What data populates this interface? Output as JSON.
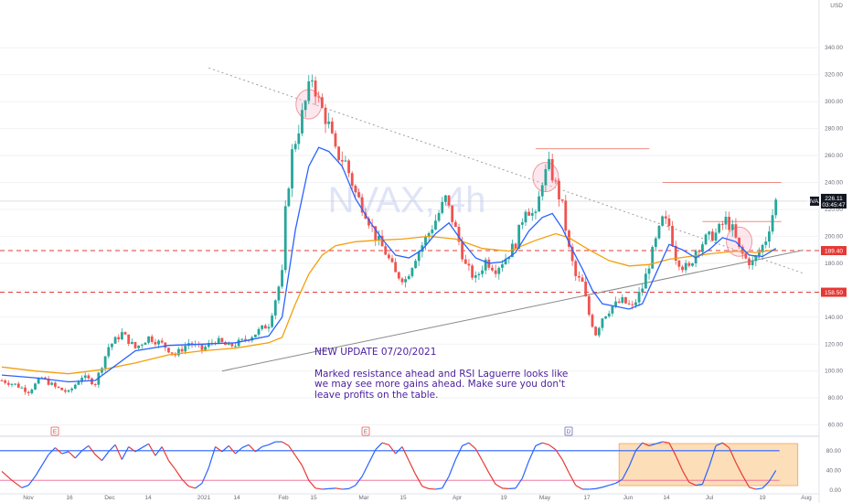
{
  "chart_data": {
    "type": "candlestick",
    "symbol_watermark": "NVAX, 4h",
    "currency": "USD",
    "ylim": [
      55,
      370
    ],
    "price_ticks": [
      60,
      80,
      100,
      120,
      140,
      160,
      180,
      200,
      220,
      240,
      260,
      280,
      300,
      320,
      340
    ],
    "x_labels": [
      "Nov",
      "16",
      "Dec",
      "14",
      "2021",
      "14",
      "Feb",
      "15",
      "Mar",
      "15",
      "Apr",
      "19",
      "May",
      "17",
      "Jun",
      "14",
      "Jul",
      "19",
      "Aug"
    ],
    "last_price": {
      "label": "NVAX",
      "value": "226.11",
      "countdown": "03:45:47",
      "color": "#131722"
    },
    "levels": [
      {
        "value": 189.4,
        "label": "189.40",
        "color": "#e53935"
      },
      {
        "value": 158.5,
        "label": "158.50",
        "color": "#e53935"
      }
    ],
    "resistance_lines": [
      265,
      240,
      211
    ],
    "ohlc_path": [
      [
        0,
        93
      ],
      [
        4,
        90
      ],
      [
        8,
        85
      ],
      [
        12,
        95
      ],
      [
        16,
        88
      ],
      [
        20,
        84
      ],
      [
        24,
        96
      ],
      [
        28,
        91
      ],
      [
        32,
        118
      ],
      [
        36,
        128
      ],
      [
        40,
        117
      ],
      [
        44,
        125
      ],
      [
        48,
        120
      ],
      [
        52,
        112
      ],
      [
        56,
        121
      ],
      [
        60,
        116
      ],
      [
        64,
        123
      ],
      [
        68,
        118
      ],
      [
        72,
        122
      ],
      [
        76,
        128
      ],
      [
        80,
        135
      ],
      [
        84,
        172
      ],
      [
        85,
        218
      ],
      [
        87,
        262
      ],
      [
        90,
        290
      ],
      [
        93,
        318
      ],
      [
        95,
        300
      ],
      [
        98,
        282
      ],
      [
        100,
        262
      ],
      [
        103,
        255
      ],
      [
        106,
        232
      ],
      [
        109,
        218
      ],
      [
        112,
        200
      ],
      [
        115,
        188
      ],
      [
        118,
        172
      ],
      [
        121,
        168
      ],
      [
        124,
        185
      ],
      [
        127,
        198
      ],
      [
        130,
        212
      ],
      [
        133,
        228
      ],
      [
        136,
        205
      ],
      [
        139,
        178
      ],
      [
        142,
        168
      ],
      [
        145,
        182
      ],
      [
        148,
        176
      ],
      [
        151,
        184
      ],
      [
        154,
        195
      ],
      [
        157,
        222
      ],
      [
        160,
        214
      ],
      [
        162,
        242
      ],
      [
        164,
        252
      ],
      [
        166,
        238
      ],
      [
        168,
        222
      ],
      [
        170,
        190
      ],
      [
        172,
        170
      ],
      [
        174,
        165
      ],
      [
        176,
        142
      ],
      [
        178,
        128
      ],
      [
        180,
        140
      ],
      [
        183,
        148
      ],
      [
        186,
        152
      ],
      [
        189,
        147
      ],
      [
        192,
        162
      ],
      [
        195,
        188
      ],
      [
        198,
        212
      ],
      [
        200,
        208
      ],
      [
        202,
        185
      ],
      [
        204,
        178
      ],
      [
        206,
        176
      ],
      [
        208,
        190
      ],
      [
        211,
        198
      ],
      [
        214,
        202
      ],
      [
        217,
        212
      ],
      [
        219,
        205
      ],
      [
        221,
        190
      ],
      [
        223,
        183
      ],
      [
        225,
        180
      ],
      [
        227,
        188
      ],
      [
        229,
        198
      ],
      [
        232,
        226
      ]
    ],
    "ema_fast": [
      [
        0,
        97
      ],
      [
        10,
        95
      ],
      [
        20,
        92
      ],
      [
        28,
        93
      ],
      [
        34,
        104
      ],
      [
        40,
        115
      ],
      [
        50,
        119
      ],
      [
        60,
        120
      ],
      [
        70,
        121
      ],
      [
        80,
        126
      ],
      [
        84,
        140
      ],
      [
        88,
        205
      ],
      [
        92,
        252
      ],
      [
        95,
        266
      ],
      [
        98,
        263
      ],
      [
        102,
        252
      ],
      [
        106,
        228
      ],
      [
        110,
        212
      ],
      [
        114,
        198
      ],
      [
        118,
        186
      ],
      [
        122,
        184
      ],
      [
        126,
        190
      ],
      [
        130,
        202
      ],
      [
        134,
        210
      ],
      [
        138,
        196
      ],
      [
        142,
        184
      ],
      [
        146,
        180
      ],
      [
        150,
        181
      ],
      [
        154,
        188
      ],
      [
        158,
        204
      ],
      [
        162,
        214
      ],
      [
        165,
        217
      ],
      [
        168,
        206
      ],
      [
        171,
        190
      ],
      [
        174,
        176
      ],
      [
        177,
        160
      ],
      [
        180,
        150
      ],
      [
        184,
        148
      ],
      [
        188,
        146
      ],
      [
        192,
        150
      ],
      [
        196,
        172
      ],
      [
        200,
        194
      ],
      [
        204,
        190
      ],
      [
        208,
        184
      ],
      [
        212,
        190
      ],
      [
        216,
        199
      ],
      [
        220,
        196
      ],
      [
        224,
        186
      ],
      [
        228,
        185
      ],
      [
        232,
        191
      ]
    ],
    "ema_slow": [
      [
        0,
        103
      ],
      [
        10,
        100
      ],
      [
        20,
        98
      ],
      [
        30,
        101
      ],
      [
        40,
        106
      ],
      [
        50,
        112
      ],
      [
        60,
        115
      ],
      [
        70,
        117
      ],
      [
        80,
        121
      ],
      [
        84,
        125
      ],
      [
        88,
        150
      ],
      [
        92,
        172
      ],
      [
        96,
        186
      ],
      [
        100,
        193
      ],
      [
        106,
        196
      ],
      [
        112,
        197
      ],
      [
        120,
        198
      ],
      [
        128,
        200
      ],
      [
        136,
        198
      ],
      [
        144,
        191
      ],
      [
        152,
        189
      ],
      [
        160,
        197
      ],
      [
        166,
        202
      ],
      [
        170,
        199
      ],
      [
        176,
        190
      ],
      [
        182,
        182
      ],
      [
        188,
        178
      ],
      [
        194,
        179
      ],
      [
        200,
        183
      ],
      [
        206,
        185
      ],
      [
        212,
        187
      ],
      [
        220,
        189
      ],
      [
        226,
        188
      ],
      [
        232,
        190
      ]
    ],
    "trendlines": [
      {
        "from": [
          62,
          325
        ],
        "to": [
          232,
          178
        ],
        "style": "dotted"
      },
      {
        "from": [
          66,
          100
        ],
        "to": [
          232,
          185
        ],
        "style": "solid"
      }
    ],
    "rsi": {
      "name": "RSI Laguerre",
      "ylim": [
        0,
        100
      ],
      "ticks": [
        "80.00",
        "40.00",
        "0.00"
      ],
      "tick_values": [
        80,
        40,
        0
      ],
      "upper_band": 80,
      "lower_band": 20,
      "values": [
        [
          0,
          38
        ],
        [
          3,
          20
        ],
        [
          6,
          5
        ],
        [
          8,
          10
        ],
        [
          10,
          28
        ],
        [
          12,
          50
        ],
        [
          14,
          72
        ],
        [
          16,
          86
        ],
        [
          18,
          74
        ],
        [
          20,
          78
        ],
        [
          22,
          65
        ],
        [
          24,
          80
        ],
        [
          26,
          90
        ],
        [
          28,
          72
        ],
        [
          30,
          60
        ],
        [
          32,
          78
        ],
        [
          34,
          92
        ],
        [
          36,
          62
        ],
        [
          38,
          88
        ],
        [
          40,
          78
        ],
        [
          42,
          86
        ],
        [
          44,
          94
        ],
        [
          46,
          70
        ],
        [
          48,
          88
        ],
        [
          50,
          60
        ],
        [
          52,
          42
        ],
        [
          54,
          22
        ],
        [
          56,
          8
        ],
        [
          58,
          4
        ],
        [
          60,
          14
        ],
        [
          62,
          45
        ],
        [
          64,
          88
        ],
        [
          66,
          78
        ],
        [
          68,
          90
        ],
        [
          70,
          74
        ],
        [
          72,
          86
        ],
        [
          74,
          92
        ],
        [
          76,
          78
        ],
        [
          78,
          88
        ],
        [
          80,
          92
        ],
        [
          82,
          98
        ],
        [
          84,
          98
        ],
        [
          86,
          90
        ],
        [
          88,
          70
        ],
        [
          90,
          50
        ],
        [
          92,
          20
        ],
        [
          94,
          4
        ],
        [
          96,
          2
        ],
        [
          98,
          3
        ],
        [
          100,
          4
        ],
        [
          102,
          2
        ],
        [
          104,
          3
        ],
        [
          106,
          10
        ],
        [
          108,
          28
        ],
        [
          110,
          55
        ],
        [
          112,
          82
        ],
        [
          114,
          96
        ],
        [
          116,
          92
        ],
        [
          118,
          74
        ],
        [
          120,
          88
        ],
        [
          122,
          60
        ],
        [
          124,
          32
        ],
        [
          126,
          8
        ],
        [
          128,
          3
        ],
        [
          130,
          2
        ],
        [
          132,
          4
        ],
        [
          134,
          28
        ],
        [
          136,
          62
        ],
        [
          138,
          90
        ],
        [
          140,
          96
        ],
        [
          142,
          84
        ],
        [
          144,
          60
        ],
        [
          146,
          35
        ],
        [
          148,
          12
        ],
        [
          150,
          4
        ],
        [
          152,
          3
        ],
        [
          154,
          4
        ],
        [
          156,
          24
        ],
        [
          158,
          60
        ],
        [
          160,
          90
        ],
        [
          162,
          96
        ],
        [
          164,
          92
        ],
        [
          166,
          82
        ],
        [
          168,
          62
        ],
        [
          170,
          35
        ],
        [
          172,
          10
        ],
        [
          174,
          2
        ],
        [
          176,
          2
        ],
        [
          178,
          3
        ],
        [
          180,
          6
        ],
        [
          182,
          10
        ],
        [
          184,
          14
        ],
        [
          186,
          22
        ],
        [
          188,
          48
        ],
        [
          190,
          80
        ],
        [
          192,
          96
        ],
        [
          194,
          90
        ],
        [
          196,
          94
        ],
        [
          198,
          98
        ],
        [
          200,
          96
        ],
        [
          202,
          70
        ],
        [
          204,
          40
        ],
        [
          206,
          16
        ],
        [
          208,
          10
        ],
        [
          210,
          12
        ],
        [
          212,
          48
        ],
        [
          214,
          90
        ],
        [
          216,
          96
        ],
        [
          218,
          86
        ],
        [
          220,
          56
        ],
        [
          222,
          30
        ],
        [
          224,
          6
        ],
        [
          226,
          2
        ],
        [
          228,
          4
        ],
        [
          230,
          18
        ],
        [
          232,
          40
        ]
      ]
    },
    "annotations": [
      {
        "title": "NEW UPDATE 07/20/2021",
        "body": "Marked resistance ahead and RSI Laguerre looks like we may see more gains ahead. Make sure you don't leave profits on the table."
      }
    ],
    "markers": [
      {
        "text": "E"
      },
      {
        "text": "E"
      },
      {
        "text": "D"
      }
    ],
    "colors": {
      "up": "#26a69a",
      "down": "#ef5350",
      "ema_fast": "#2962ff",
      "ema_slow": "#f59e0b",
      "level": "#e53935",
      "trend": "#7c7c7c",
      "rsi_up": "#2962ff",
      "rsi_down": "#e53935",
      "highlight_fill": "#f9c27d",
      "note_text": "#4a1e9e"
    }
  }
}
